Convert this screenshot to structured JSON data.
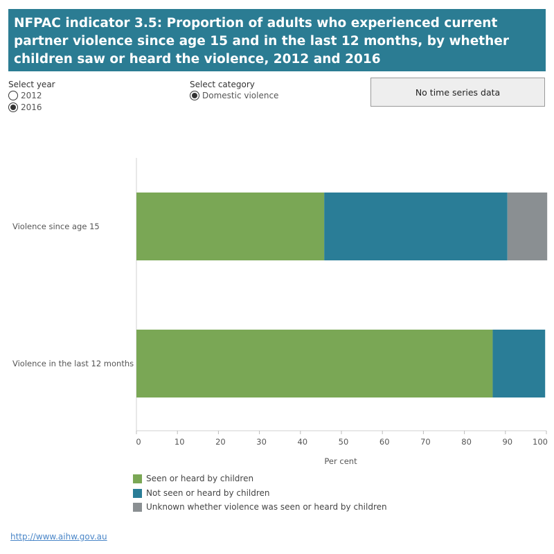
{
  "header": {
    "title": "NFPAC indicator 3.5: Proportion of adults who experienced current partner violence since age 15 and in the last 12 months, by whether children saw or heard the violence, 2012 and 2016"
  },
  "controls": {
    "year": {
      "label": "Select year",
      "options": [
        "2012",
        "2016"
      ],
      "selected": "2016"
    },
    "category": {
      "label": "Select category",
      "options": [
        "Domestic violence"
      ],
      "selected": "Domestic violence"
    }
  },
  "notice": "No time series data",
  "colors": {
    "seen": "#7aa755",
    "not_seen": "#2a7d97",
    "unknown": "#8a8f92"
  },
  "chart_data": {
    "type": "bar",
    "orientation": "horizontal",
    "stacked": true,
    "categories": [
      "Violence since age 15",
      "Violence in the last 12 months"
    ],
    "series": [
      {
        "name": "Seen or heard by children",
        "values": [
          45.8,
          86.9
        ]
      },
      {
        "name": "Not seen or heard by children",
        "values": [
          44.7,
          12.8
        ]
      },
      {
        "name": "Unknown whether violence was seen or heard by children",
        "values": [
          9.7,
          0
        ]
      }
    ],
    "xlabel": "Per cent",
    "xlim": [
      0,
      100
    ],
    "xticks": [
      0,
      10,
      20,
      30,
      40,
      50,
      60,
      70,
      80,
      90,
      100
    ],
    "grid": false,
    "legend_position": "bottom-left"
  },
  "footer": {
    "link": "http://www.aihw.gov.au"
  }
}
